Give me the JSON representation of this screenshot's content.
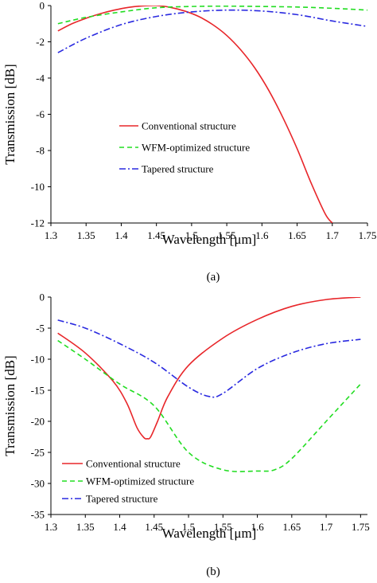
{
  "chart_data": [
    {
      "type": "line",
      "panel_label": "(a)",
      "xlabel": "Wavelength [μm]",
      "ylabel": "Transmission [dB]",
      "xlim": [
        1.3,
        1.75
      ],
      "ylim": [
        -12,
        0
      ],
      "xticks": [
        1.3,
        1.35,
        1.4,
        1.45,
        1.5,
        1.55,
        1.6,
        1.65,
        1.7,
        1.75
      ],
      "xtick_labels": [
        "1.3",
        "1.35",
        "1.4",
        "1.45",
        "1.5",
        "1.55",
        "1.6",
        "1.65",
        "1.7",
        "1.75"
      ],
      "yticks": [
        -12,
        -10,
        -8,
        -6,
        -4,
        -2,
        0
      ],
      "ytick_labels": [
        "-12",
        "-10",
        "-8",
        "-6",
        "-4",
        "-2",
        "0"
      ],
      "grid": false,
      "legend_position": "center",
      "series": [
        {
          "name": "Conventional structure",
          "color": "#e8262a",
          "dash": "solid",
          "x": [
            1.31,
            1.33,
            1.35,
            1.37,
            1.39,
            1.41,
            1.43,
            1.45,
            1.47,
            1.49,
            1.51,
            1.53,
            1.55,
            1.57,
            1.59,
            1.61,
            1.63,
            1.65,
            1.67,
            1.69,
            1.7
          ],
          "y": [
            -1.4,
            -1.0,
            -0.7,
            -0.45,
            -0.25,
            -0.1,
            -0.02,
            0,
            -0.1,
            -0.3,
            -0.6,
            -1.05,
            -1.65,
            -2.45,
            -3.45,
            -4.7,
            -6.2,
            -7.9,
            -9.8,
            -11.5,
            -12.0
          ]
        },
        {
          "name": "WFM-optimized structure",
          "color": "#22dd22",
          "dash": "dashed",
          "x": [
            1.31,
            1.35,
            1.4,
            1.45,
            1.5,
            1.55,
            1.6,
            1.65,
            1.7,
            1.75
          ],
          "y": [
            -1.0,
            -0.65,
            -0.35,
            -0.12,
            -0.05,
            -0.03,
            -0.05,
            -0.08,
            -0.15,
            -0.25
          ]
        },
        {
          "name": "Tapered structure",
          "color": "#2a2ae0",
          "dash": "dashdot",
          "x": [
            1.31,
            1.35,
            1.4,
            1.45,
            1.5,
            1.55,
            1.6,
            1.65,
            1.7,
            1.75
          ],
          "y": [
            -2.6,
            -1.8,
            -1.05,
            -0.6,
            -0.35,
            -0.25,
            -0.3,
            -0.5,
            -0.85,
            -1.15
          ]
        }
      ]
    },
    {
      "type": "line",
      "panel_label": "(b)",
      "xlabel": "Wavelength [μm]",
      "ylabel": "Transmission [dB]",
      "xlim": [
        1.3,
        1.76
      ],
      "ylim": [
        -35,
        0
      ],
      "xticks": [
        1.3,
        1.35,
        1.4,
        1.45,
        1.5,
        1.55,
        1.6,
        1.65,
        1.7,
        1.75
      ],
      "xtick_labels": [
        "1.3",
        "1.35",
        "1.4",
        "1.45",
        "1.5",
        "1.55",
        "1.6",
        "1.65",
        "1.7",
        "1.75"
      ],
      "yticks": [
        -35,
        -30,
        -25,
        -20,
        -15,
        -10,
        -5,
        0
      ],
      "ytick_labels": [
        "-35",
        "-30",
        "-25",
        "-20",
        "-15",
        "-10",
        "-5",
        "0"
      ],
      "grid": false,
      "legend_position": "bottom-left",
      "series": [
        {
          "name": "Conventional structure",
          "color": "#e8262a",
          "dash": "solid",
          "x": [
            1.31,
            1.35,
            1.39,
            1.41,
            1.425,
            1.435,
            1.44,
            1.445,
            1.455,
            1.47,
            1.5,
            1.55,
            1.6,
            1.65,
            1.7,
            1.75
          ],
          "y": [
            -5.8,
            -9.0,
            -13.5,
            -17.0,
            -21.0,
            -22.6,
            -22.8,
            -22.5,
            -20.0,
            -16.0,
            -11.0,
            -6.6,
            -3.6,
            -1.5,
            -0.4,
            0
          ]
        },
        {
          "name": "WFM-optimized structure",
          "color": "#22dd22",
          "dash": "dashed",
          "x": [
            1.31,
            1.35,
            1.4,
            1.45,
            1.5,
            1.55,
            1.6,
            1.625,
            1.65,
            1.7,
            1.75
          ],
          "y": [
            -7.0,
            -10.0,
            -14.0,
            -17.5,
            -25.0,
            -27.8,
            -28.0,
            -27.8,
            -26.0,
            -20.0,
            -14.0
          ]
        },
        {
          "name": "Tapered structure",
          "color": "#2a2ae0",
          "dash": "dashdot",
          "x": [
            1.31,
            1.35,
            1.4,
            1.45,
            1.5,
            1.53,
            1.55,
            1.6,
            1.65,
            1.7,
            1.75
          ],
          "y": [
            -3.7,
            -5.0,
            -7.5,
            -10.5,
            -14.5,
            -16.0,
            -15.5,
            -11.5,
            -9.0,
            -7.5,
            -6.8
          ]
        }
      ]
    }
  ]
}
